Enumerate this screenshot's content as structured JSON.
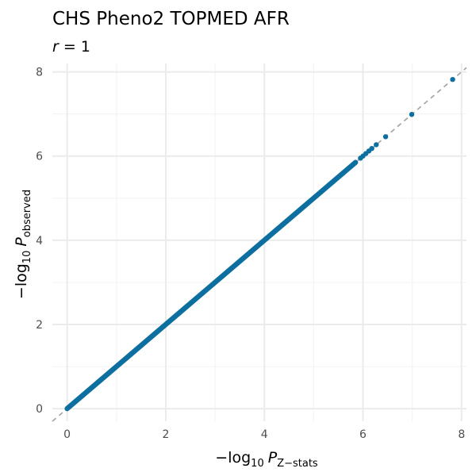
{
  "chart_data": {
    "type": "scatter",
    "title": "CHS Pheno2 TOPMED AFR",
    "subtitle": {
      "var": "r",
      "op": " = ",
      "value": "1"
    },
    "xlabel": {
      "prefix": "−log",
      "base": "10",
      "var": "P",
      "sub": "Z−stats"
    },
    "ylabel": {
      "prefix": "−log",
      "base": "10",
      "var": "P",
      "sub": "observed"
    },
    "xlim": [
      -0.3,
      8.1
    ],
    "ylim": [
      -0.3,
      8.2
    ],
    "x_ticks": [
      0,
      2,
      4,
      6,
      8
    ],
    "y_ticks": [
      0,
      2,
      4,
      6,
      8
    ],
    "x_tick_labels": [
      "0",
      "2",
      "4",
      "6",
      "8"
    ],
    "y_tick_labels": [
      "0",
      "2",
      "4",
      "6",
      "8"
    ],
    "grid": true,
    "legend": "none",
    "reference_line": {
      "slope": 1,
      "intercept": 0,
      "style": "dashed",
      "color": "#a6a6a6"
    },
    "point_color": "#0d6fa0",
    "dense_range": [
      0,
      5.85
    ],
    "series": [
      {
        "x": [
          5.95,
          6.0,
          6.06,
          6.12,
          6.18,
          6.27,
          6.46,
          6.99,
          7.82
        ],
        "y": [
          5.95,
          6.0,
          6.06,
          6.12,
          6.18,
          6.27,
          6.46,
          6.99,
          7.82
        ]
      }
    ]
  }
}
